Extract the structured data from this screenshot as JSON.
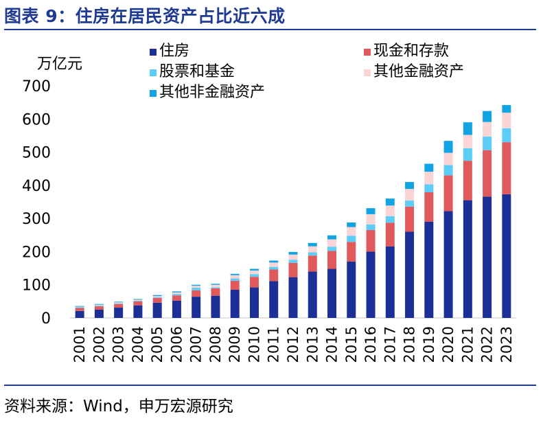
{
  "header": {
    "title": "图表 9：住房在居民资产占比近六成"
  },
  "footer": {
    "source": "资料来源：Wind，申万宏源研究"
  },
  "colors": {
    "title": "#1f3a93",
    "housing": "#1b2f96",
    "cash_deposits": "#e05a5c",
    "stocks_funds": "#5ccdf6",
    "other_financial": "#f9d5d5",
    "other_nonfinancial": "#12a3e3",
    "axis": "#d9d9d9"
  },
  "chart_data": {
    "type": "bar",
    "stacked": true,
    "ylabel": "万亿元",
    "ylim": [
      0,
      700
    ],
    "yticks": [
      0,
      100,
      200,
      300,
      400,
      500,
      600,
      700
    ],
    "grid": false,
    "legend_position": "top",
    "categories": [
      "2001",
      "2002",
      "2003",
      "2004",
      "2005",
      "2006",
      "2007",
      "2008",
      "2009",
      "2010",
      "2011",
      "2012",
      "2013",
      "2014",
      "2015",
      "2016",
      "2017",
      "2018",
      "2019",
      "2020",
      "2021",
      "2022",
      "2023"
    ],
    "series": [
      {
        "name": "住房",
        "color": "#1b2f96",
        "values": [
          21,
          25,
          31,
          38,
          46,
          52,
          64,
          67,
          85,
          92,
          111,
          123,
          140,
          148,
          170,
          200,
          216,
          260,
          290,
          322,
          355,
          366,
          373
        ]
      },
      {
        "name": "现金和存款",
        "color": "#e05a5c",
        "values": [
          9,
          10,
          11,
          12,
          14,
          16,
          19,
          22,
          27,
          32,
          35,
          43,
          48,
          54,
          59,
          65,
          71,
          76,
          89,
          108,
          119,
          140,
          157
        ]
      },
      {
        "name": "股票和基金",
        "color": "#5ccdf6",
        "values": [
          2,
          2,
          2,
          2,
          2,
          4,
          8,
          3,
          7,
          8,
          8,
          9,
          10,
          13,
          19,
          17,
          20,
          18,
          24,
          31,
          38,
          41,
          42
        ]
      },
      {
        "name": "其他金融资产",
        "color": "#f9d5d5",
        "values": [
          2,
          3,
          3,
          3,
          4,
          5,
          6,
          8,
          10,
          11,
          13,
          16,
          18,
          22,
          26,
          31,
          32,
          35,
          38,
          37,
          40,
          44,
          47
        ]
      },
      {
        "name": "其他非金融资产",
        "color": "#12a3e3",
        "values": [
          2,
          2,
          2,
          2,
          3,
          3,
          3,
          3,
          4,
          5,
          6,
          8,
          10,
          12,
          14,
          18,
          21,
          21,
          24,
          36,
          38,
          33,
          23
        ]
      }
    ]
  }
}
